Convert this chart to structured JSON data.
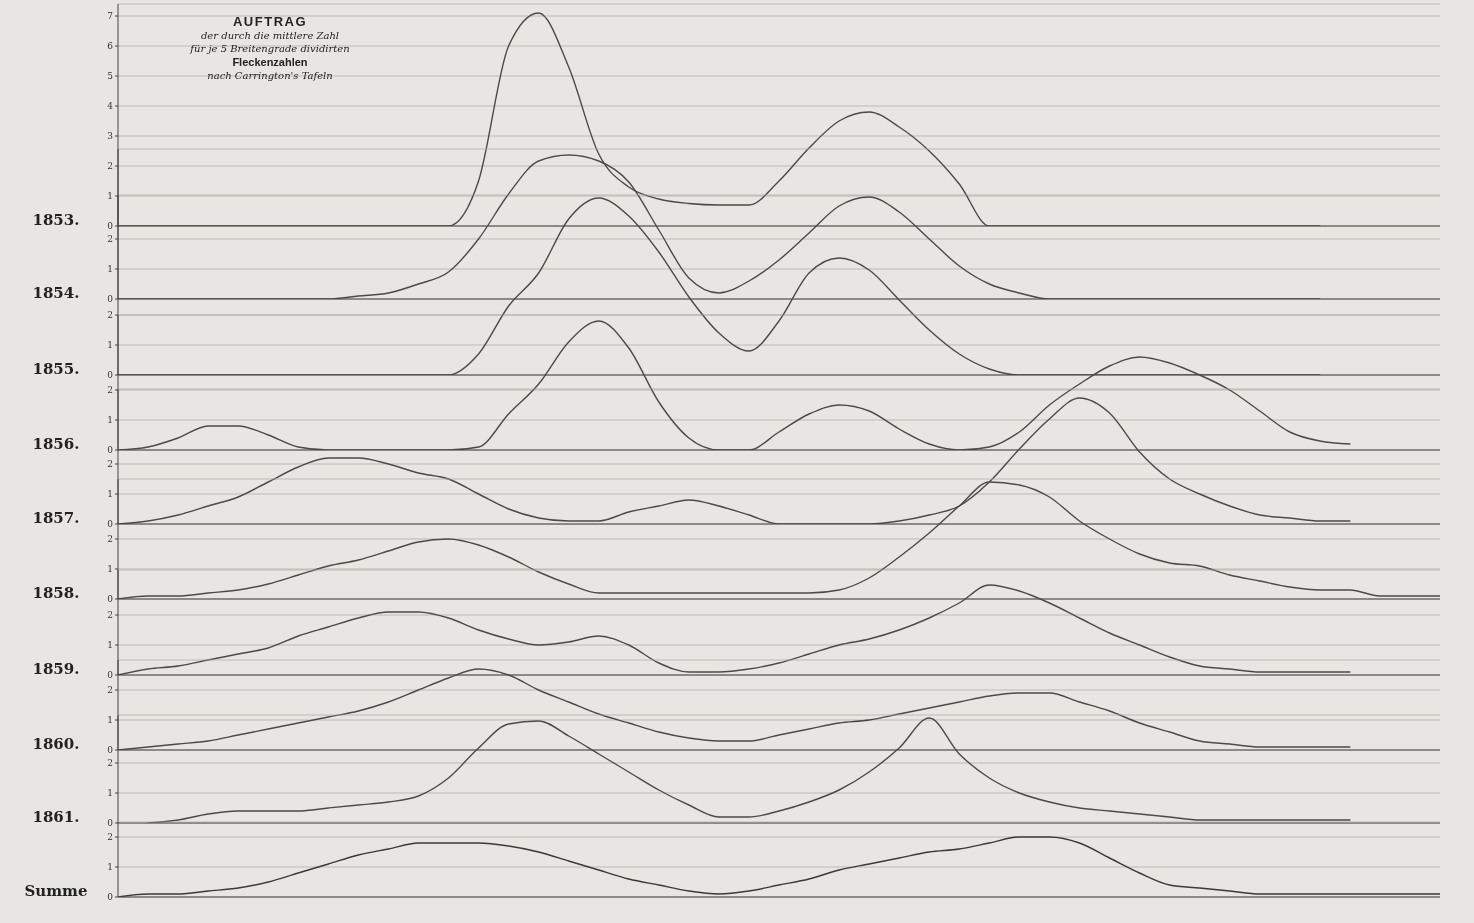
{
  "chart_data": [
    {
      "type": "line",
      "title": "AUFTRAG",
      "annotations": [
        "der durch die mittlere Zahl",
        "für je 5 Breitengrade dividirten",
        "Fleckenzahlen",
        "nach Carrington's Tafeln"
      ],
      "ylabel": "1853.",
      "categories": [
        null,
        null,
        null,
        null,
        null,
        null,
        null,
        null,
        null,
        null,
        null,
        null,
        null,
        null,
        null,
        null,
        null,
        null,
        null,
        null,
        null,
        null,
        null,
        null,
        null,
        null,
        null,
        null,
        null,
        null,
        null,
        null,
        null,
        null,
        null,
        null,
        null,
        null,
        null,
        null,
        null,
        null,
        null,
        null,
        null
      ],
      "ylim": [
        0,
        7.4
      ],
      "yticks": [
        0,
        1,
        2,
        3,
        4,
        5,
        6,
        7
      ],
      "tick_labels": "y",
      "grid": "y",
      "series": [
        {
          "color": "#4a4a4a",
          "values": [
            0,
            0,
            0,
            0,
            0,
            0,
            0,
            0,
            0,
            0,
            0,
            0,
            1.5,
            6.0,
            7.1,
            5.3,
            2.4,
            1.3,
            0.9,
            0.75,
            0.7,
            0.7,
            1.5,
            2.6,
            3.5,
            3.8,
            3.3,
            2.5,
            1.4,
            0,
            0,
            0,
            0,
            0,
            0,
            0,
            0,
            0,
            0,
            0,
            0,
            null,
            null,
            null,
            null
          ]
        }
      ]
    },
    {
      "type": "line",
      "ylabel": "1854.",
      "categories": [
        null,
        null,
        null,
        null,
        null,
        null,
        null,
        null,
        null,
        null,
        null,
        null,
        null,
        null,
        null,
        null,
        null,
        null,
        null,
        null,
        null,
        null,
        null,
        null,
        null,
        null,
        null,
        null,
        null,
        null,
        null,
        null,
        null,
        null,
        null,
        null,
        null,
        null,
        null,
        null,
        null,
        null,
        null,
        null,
        null
      ],
      "ylim": [
        0,
        5
      ],
      "yticks": [
        0,
        1,
        2
      ],
      "tick_labels": "y",
      "grid": "y",
      "series": [
        {
          "color": "#4a4a4a",
          "values": [
            0,
            0,
            0,
            0,
            0,
            0,
            0,
            0,
            0.1,
            0.2,
            0.5,
            0.9,
            2.0,
            3.5,
            4.6,
            4.8,
            4.6,
            3.9,
            2.3,
            0.7,
            0.2,
            0.6,
            1.3,
            2.2,
            3.1,
            3.4,
            2.9,
            2.0,
            1.1,
            0.5,
            0.2,
            0,
            0,
            0,
            0,
            0,
            0,
            0,
            0,
            0,
            0,
            null,
            null,
            null,
            null
          ]
        }
      ]
    },
    {
      "type": "line",
      "ylabel": "1855.",
      "categories": [
        null,
        null,
        null,
        null,
        null,
        null,
        null,
        null,
        null,
        null,
        null,
        null,
        null,
        null,
        null,
        null,
        null,
        null,
        null,
        null,
        null,
        null,
        null,
        null,
        null,
        null,
        null,
        null,
        null,
        null,
        null,
        null,
        null,
        null,
        null,
        null,
        null,
        null,
        null,
        null,
        null,
        null,
        null,
        null,
        null
      ],
      "ylim": [
        0,
        6
      ],
      "yticks": [
        0,
        1,
        2
      ],
      "tick_labels": "y",
      "grid": "y",
      "series": [
        {
          "color": "#4a4a4a",
          "values": [
            0,
            0,
            0,
            0,
            0,
            0,
            0,
            0,
            0,
            0,
            0,
            0,
            0.7,
            2.3,
            3.4,
            5.2,
            5.9,
            5.3,
            4.1,
            2.6,
            1.4,
            0.8,
            1.8,
            3.4,
            3.9,
            3.5,
            2.5,
            1.5,
            0.7,
            0.2,
            0,
            0,
            0,
            0,
            0,
            0,
            0,
            0,
            0,
            0,
            0,
            null,
            null,
            null,
            null
          ]
        }
      ]
    },
    {
      "type": "line",
      "ylabel": "1856.",
      "categories": [
        null,
        null,
        null,
        null,
        null,
        null,
        null,
        null,
        null,
        null,
        null,
        null,
        null,
        null,
        null,
        null,
        null,
        null,
        null,
        null,
        null,
        null,
        null,
        null,
        null,
        null,
        null,
        null,
        null,
        null,
        null,
        null,
        null,
        null,
        null,
        null,
        null,
        null,
        null,
        null,
        null,
        null,
        null,
        null,
        null
      ],
      "ylim": [
        0,
        4.5
      ],
      "yticks": [
        0,
        1,
        2
      ],
      "tick_labels": "y",
      "grid": "y",
      "series": [
        {
          "color": "#4a4a4a",
          "values": [
            0,
            0.1,
            0.4,
            0.8,
            0.8,
            0.5,
            0.1,
            0,
            0,
            0,
            0,
            0,
            0.1,
            1.2,
            2.2,
            3.6,
            4.3,
            3.4,
            1.6,
            0.4,
            0,
            0,
            0.6,
            1.2,
            1.5,
            1.3,
            0.7,
            0.2,
            0,
            0.1,
            0.6,
            1.5,
            2.2,
            2.8,
            3.1,
            2.9,
            2.5,
            2.0,
            1.3,
            0.6,
            0.3,
            0.2,
            null,
            null,
            null
          ]
        }
      ]
    },
    {
      "type": "line",
      "ylabel": "1857.",
      "categories": [
        null,
        null,
        null,
        null,
        null,
        null,
        null,
        null,
        null,
        null,
        null,
        null,
        null,
        null,
        null,
        null,
        null,
        null,
        null,
        null,
        null,
        null,
        null,
        null,
        null,
        null,
        null,
        null,
        null,
        null,
        null,
        null,
        null,
        null,
        null,
        null,
        null,
        null,
        null,
        null,
        null,
        null,
        null,
        null,
        null
      ],
      "ylim": [
        0,
        4.5
      ],
      "yticks": [
        0,
        1,
        2
      ],
      "tick_labels": "y",
      "grid": "y",
      "series": [
        {
          "color": "#4a4a4a",
          "values": [
            0,
            0.1,
            0.3,
            0.6,
            0.9,
            1.4,
            1.9,
            2.2,
            2.2,
            2.0,
            1.7,
            1.5,
            1.0,
            0.5,
            0.2,
            0.1,
            0.1,
            0.4,
            0.6,
            0.8,
            0.6,
            0.3,
            0,
            0,
            0,
            0,
            0.1,
            0.3,
            0.6,
            1.4,
            2.5,
            3.5,
            4.2,
            3.7,
            2.4,
            1.5,
            1.0,
            0.6,
            0.3,
            0.2,
            0.1,
            0.1,
            null,
            null,
            null
          ]
        }
      ]
    },
    {
      "type": "line",
      "ylabel": "1858.",
      "categories": [
        null,
        null,
        null,
        null,
        null,
        null,
        null,
        null,
        null,
        null,
        null,
        null,
        null,
        null,
        null,
        null,
        null,
        null,
        null,
        null,
        null,
        null,
        null,
        null,
        null,
        null,
        null,
        null,
        null,
        null,
        null,
        null,
        null,
        null,
        null,
        null,
        null,
        null,
        null,
        null,
        null,
        null,
        null,
        null,
        null
      ],
      "ylim": [
        0,
        4
      ],
      "yticks": [
        0,
        1,
        2
      ],
      "tick_labels": "y",
      "grid": "y",
      "series": [
        {
          "color": "#4a4a4a",
          "values": [
            0,
            0.1,
            0.1,
            0.2,
            0.3,
            0.5,
            0.8,
            1.1,
            1.3,
            1.6,
            1.9,
            2.0,
            1.8,
            1.4,
            0.9,
            0.5,
            0.2,
            0.2,
            0.2,
            0.2,
            0.2,
            0.2,
            0.2,
            0.2,
            0.3,
            0.7,
            1.4,
            2.2,
            3.1,
            3.9,
            3.8,
            3.4,
            2.6,
            2.0,
            1.5,
            1.2,
            1.1,
            0.8,
            0.6,
            0.4,
            0.3,
            0.3,
            0.1,
            0.1,
            0.1
          ]
        }
      ]
    },
    {
      "type": "line",
      "ylabel": "1859.",
      "categories": [
        null,
        null,
        null,
        null,
        null,
        null,
        null,
        null,
        null,
        null,
        null,
        null,
        null,
        null,
        null,
        null,
        null,
        null,
        null,
        null,
        null,
        null,
        null,
        null,
        null,
        null,
        null,
        null,
        null,
        null,
        null,
        null,
        null,
        null,
        null,
        null,
        null,
        null,
        null,
        null,
        null,
        null,
        null,
        null,
        null
      ],
      "ylim": [
        0,
        3.5
      ],
      "yticks": [
        0,
        1,
        2
      ],
      "tick_labels": "y",
      "grid": "y",
      "series": [
        {
          "color": "#4a4a4a",
          "values": [
            0,
            0.2,
            0.3,
            0.5,
            0.7,
            0.9,
            1.3,
            1.6,
            1.9,
            2.1,
            2.1,
            1.9,
            1.5,
            1.2,
            1.0,
            1.1,
            1.3,
            1.0,
            0.4,
            0.1,
            0.1,
            0.2,
            0.4,
            0.7,
            1.0,
            1.2,
            1.5,
            1.9,
            2.4,
            3.0,
            2.8,
            2.4,
            1.9,
            1.4,
            1.0,
            0.6,
            0.3,
            0.2,
            0.1,
            0.1,
            0.1,
            0.1,
            null,
            null,
            null
          ]
        }
      ]
    },
    {
      "type": "line",
      "ylabel": "1860.",
      "categories": [
        null,
        null,
        null,
        null,
        null,
        null,
        null,
        null,
        null,
        null,
        null,
        null,
        null,
        null,
        null,
        null,
        null,
        null,
        null,
        null,
        null,
        null,
        null,
        null,
        null,
        null,
        null,
        null,
        null,
        null,
        null,
        null,
        null,
        null,
        null,
        null,
        null,
        null,
        null,
        null,
        null,
        null,
        null,
        null,
        null
      ],
      "ylim": [
        0,
        3
      ],
      "yticks": [
        0,
        1,
        2
      ],
      "tick_labels": "y",
      "grid": "y",
      "series": [
        {
          "color": "#4a4a4a",
          "values": [
            0,
            0.1,
            0.2,
            0.3,
            0.5,
            0.7,
            0.9,
            1.1,
            1.3,
            1.6,
            2.0,
            2.4,
            2.7,
            2.5,
            2.0,
            1.6,
            1.2,
            0.9,
            0.6,
            0.4,
            0.3,
            0.3,
            0.5,
            0.7,
            0.9,
            1.0,
            1.2,
            1.4,
            1.6,
            1.8,
            1.9,
            1.9,
            1.6,
            1.3,
            0.9,
            0.6,
            0.3,
            0.2,
            0.1,
            0.1,
            0.1,
            0.1,
            null,
            null,
            null
          ]
        }
      ]
    },
    {
      "type": "line",
      "ylabel": "1861.",
      "categories": [
        null,
        null,
        null,
        null,
        null,
        null,
        null,
        null,
        null,
        null,
        null,
        null,
        null,
        null,
        null,
        null,
        null,
        null,
        null,
        null,
        null,
        null,
        null,
        null,
        null,
        null,
        null,
        null,
        null,
        null,
        null,
        null,
        null,
        null,
        null,
        null,
        null,
        null,
        null,
        null,
        null,
        null,
        null,
        null,
        null
      ],
      "ylim": [
        0,
        3.6
      ],
      "yticks": [
        0,
        1,
        2
      ],
      "tick_labels": "y",
      "grid": "y",
      "series": [
        {
          "color": "#4a4a4a",
          "values": [
            null,
            0,
            0.1,
            0.3,
            0.4,
            0.4,
            0.4,
            0.5,
            0.6,
            0.7,
            0.9,
            1.5,
            2.5,
            3.3,
            3.4,
            2.9,
            2.3,
            1.7,
            1.1,
            0.6,
            0.2,
            0.2,
            0.4,
            0.7,
            1.1,
            1.7,
            2.5,
            3.5,
            2.3,
            1.5,
            1.0,
            0.7,
            0.5,
            0.4,
            0.3,
            0.2,
            0.1,
            0.1,
            0.1,
            0.1,
            0.1,
            0.1,
            null,
            null,
            null
          ]
        }
      ]
    },
    {
      "type": "line",
      "ylabel": "Summe",
      "categories": [
        null,
        null,
        null,
        null,
        null,
        null,
        null,
        null,
        null,
        null,
        null,
        null,
        null,
        null,
        null,
        null,
        null,
        null,
        null,
        null,
        null,
        null,
        null,
        null,
        null,
        null,
        null,
        null,
        null,
        null,
        null,
        null,
        null,
        null,
        null,
        null,
        null,
        null,
        null,
        null,
        null,
        null,
        null,
        null,
        null
      ],
      "ylim": [
        0,
        2.5
      ],
      "yticks": [
        0,
        1,
        2
      ],
      "tick_labels": "y",
      "grid": "y",
      "series": [
        {
          "color": "#3a3a3a",
          "values": [
            0,
            0.1,
            0.1,
            0.2,
            0.3,
            0.5,
            0.8,
            1.1,
            1.4,
            1.6,
            1.8,
            1.8,
            1.8,
            1.7,
            1.5,
            1.2,
            0.9,
            0.6,
            0.4,
            0.2,
            0.1,
            0.2,
            0.4,
            0.6,
            0.9,
            1.1,
            1.3,
            1.5,
            1.6,
            1.8,
            2.0,
            2.0,
            1.8,
            1.3,
            0.8,
            0.4,
            0.3,
            0.2,
            0.1,
            0.1,
            0.1,
            0.1,
            0.1,
            0.1,
            0.1
          ]
        }
      ]
    }
  ]
}
